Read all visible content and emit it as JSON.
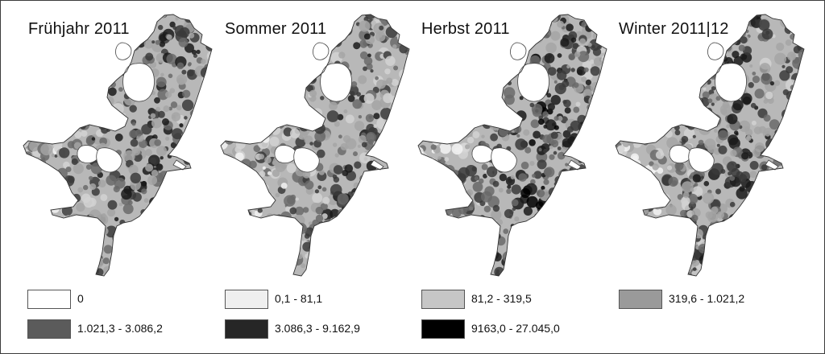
{
  "panels": [
    {
      "title": "Frühjahr 2011",
      "seed": 11,
      "bias": 0.62
    },
    {
      "title": "Sommer 2011",
      "seed": 23,
      "bias": 0.5
    },
    {
      "title": "Herbst 2011",
      "seed": 37,
      "bias": 0.7
    },
    {
      "title": "Winter 2011|12",
      "seed": 51,
      "bias": 0.58
    }
  ],
  "legend": [
    {
      "label": "0",
      "color": "#ffffff"
    },
    {
      "label": "0,1 - 81,1",
      "color": "#efefef"
    },
    {
      "label": "81,2 - 319,5",
      "color": "#c6c6c6"
    },
    {
      "label": "319,6 - 1.021,2",
      "color": "#9a9a9a"
    },
    {
      "label": "1.021,3 - 3.086,2",
      "color": "#5b5b5b"
    },
    {
      "label": "3.086,3 - 9.162,9",
      "color": "#262626"
    },
    {
      "label": "9163,0 - 27.045,0",
      "color": "#000000"
    }
  ]
}
